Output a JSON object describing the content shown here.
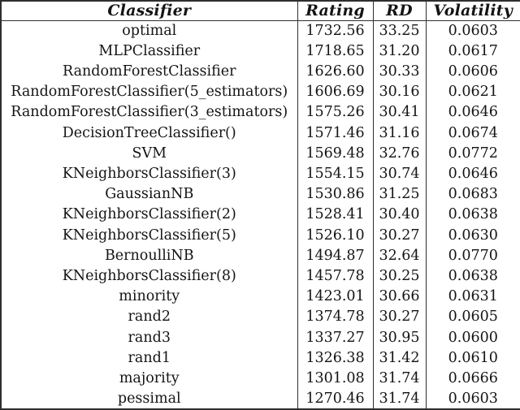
{
  "table": {
    "columns": [
      {
        "label": "Classifier"
      },
      {
        "label": "Rating"
      },
      {
        "label": "RD"
      },
      {
        "label": "Volatility"
      }
    ],
    "rows": [
      {
        "classifier": "optimal",
        "rating": "1732.56",
        "rd": "33.25",
        "volatility": "0.0603"
      },
      {
        "classifier": "MLPClassifier",
        "rating": "1718.65",
        "rd": "31.20",
        "volatility": "0.0617"
      },
      {
        "classifier": "RandomForestClassifier",
        "rating": "1626.60",
        "rd": "30.33",
        "volatility": "0.0606"
      },
      {
        "classifier": "RandomForestClassifier(5_estimators)",
        "rating": "1606.69",
        "rd": "30.16",
        "volatility": "0.0621"
      },
      {
        "classifier": "RandomForestClassifier(3_estimators)",
        "rating": "1575.26",
        "rd": "30.41",
        "volatility": "0.0646"
      },
      {
        "classifier": "DecisionTreeClassifier()",
        "rating": "1571.46",
        "rd": "31.16",
        "volatility": "0.0674"
      },
      {
        "classifier": "SVM",
        "rating": "1569.48",
        "rd": "32.76",
        "volatility": "0.0772"
      },
      {
        "classifier": "KNeighborsClassifier(3)",
        "rating": "1554.15",
        "rd": "30.74",
        "volatility": "0.0646"
      },
      {
        "classifier": "GaussianNB",
        "rating": "1530.86",
        "rd": "31.25",
        "volatility": "0.0683"
      },
      {
        "classifier": "KNeighborsClassifier(2)",
        "rating": "1528.41",
        "rd": "30.40",
        "volatility": "0.0638"
      },
      {
        "classifier": "KNeighborsClassifier(5)",
        "rating": "1526.10",
        "rd": "30.27",
        "volatility": "0.0630"
      },
      {
        "classifier": "BernoulliNB",
        "rating": "1494.87",
        "rd": "32.64",
        "volatility": "0.0770"
      },
      {
        "classifier": "KNeighborsClassifier(8)",
        "rating": "1457.78",
        "rd": "30.25",
        "volatility": "0.0638"
      },
      {
        "classifier": "minority",
        "rating": "1423.01",
        "rd": "30.66",
        "volatility": "0.0631"
      },
      {
        "classifier": "rand2",
        "rating": "1374.78",
        "rd": "30.27",
        "volatility": "0.0605"
      },
      {
        "classifier": "rand3",
        "rating": "1337.27",
        "rd": "30.95",
        "volatility": "0.0600"
      },
      {
        "classifier": "rand1",
        "rating": "1326.38",
        "rd": "31.42",
        "volatility": "0.0610"
      },
      {
        "classifier": "majority",
        "rating": "1301.08",
        "rd": "31.74",
        "volatility": "0.0666"
      },
      {
        "classifier": "pessimal",
        "rating": "1270.46",
        "rd": "31.74",
        "volatility": "0.0603"
      }
    ]
  },
  "chart_data": {
    "type": "table",
    "title": "",
    "columns": [
      "Classifier",
      "Rating",
      "RD",
      "Volatility"
    ],
    "rows": [
      [
        "optimal",
        1732.56,
        33.25,
        0.0603
      ],
      [
        "MLPClassifier",
        1718.65,
        31.2,
        0.0617
      ],
      [
        "RandomForestClassifier",
        1626.6,
        30.33,
        0.0606
      ],
      [
        "RandomForestClassifier(5_estimators)",
        1606.69,
        30.16,
        0.0621
      ],
      [
        "RandomForestClassifier(3_estimators)",
        1575.26,
        30.41,
        0.0646
      ],
      [
        "DecisionTreeClassifier()",
        1571.46,
        31.16,
        0.0674
      ],
      [
        "SVM",
        1569.48,
        32.76,
        0.0772
      ],
      [
        "KNeighborsClassifier(3)",
        1554.15,
        30.74,
        0.0646
      ],
      [
        "GaussianNB",
        1530.86,
        31.25,
        0.0683
      ],
      [
        "KNeighborsClassifier(2)",
        1528.41,
        30.4,
        0.0638
      ],
      [
        "KNeighborsClassifier(5)",
        1526.1,
        30.27,
        0.063
      ],
      [
        "BernoulliNB",
        1494.87,
        32.64,
        0.077
      ],
      [
        "KNeighborsClassifier(8)",
        1457.78,
        30.25,
        0.0638
      ],
      [
        "minority",
        1423.01,
        30.66,
        0.0631
      ],
      [
        "rand2",
        1374.78,
        30.27,
        0.0605
      ],
      [
        "rand3",
        1337.27,
        30.95,
        0.06
      ],
      [
        "rand1",
        1326.38,
        31.42,
        0.061
      ],
      [
        "majority",
        1301.08,
        31.74,
        0.0666
      ],
      [
        "pessimal",
        1270.46,
        31.74,
        0.0603
      ]
    ],
    "colors": {
      "text": "#141414",
      "rule": "#2e2e2e",
      "background": "#ffffff"
    }
  }
}
